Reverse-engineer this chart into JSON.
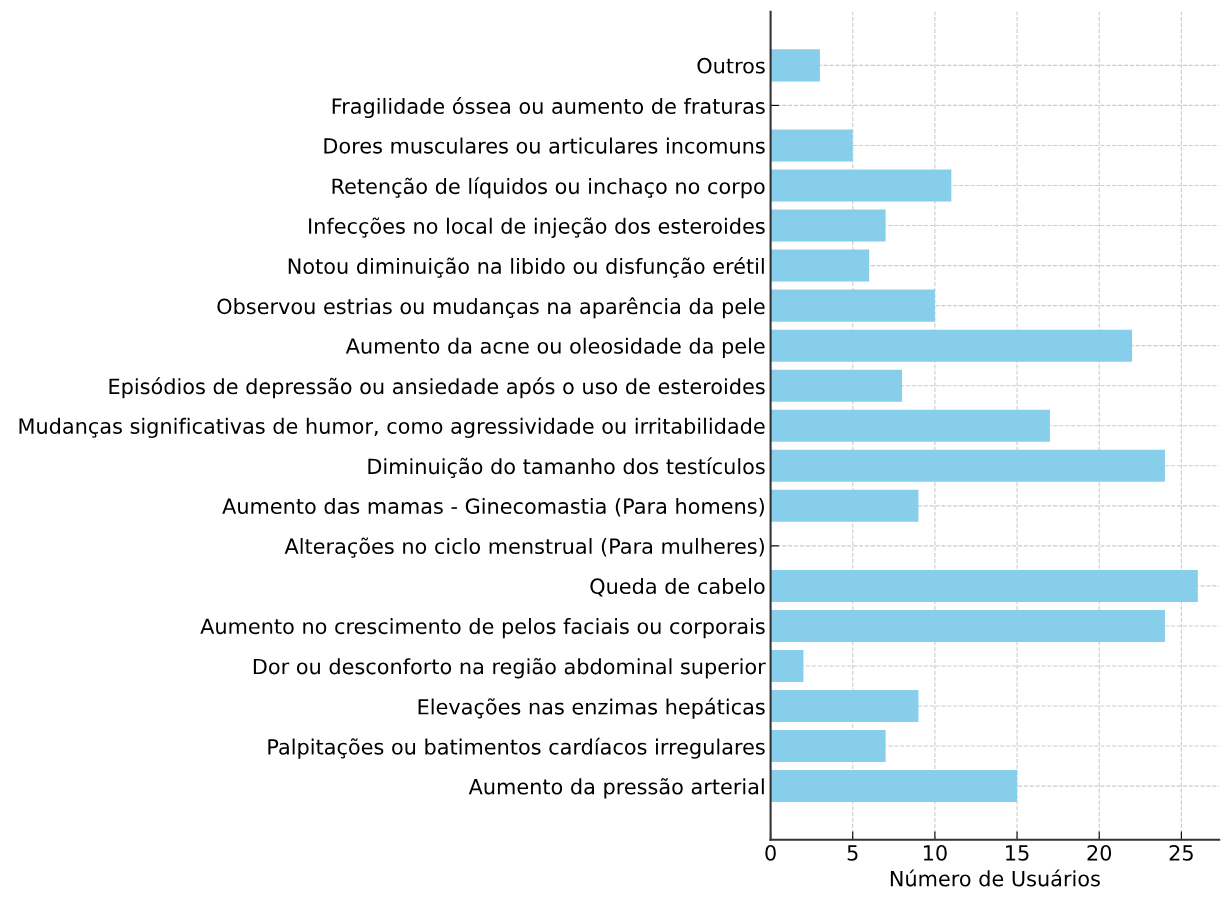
{
  "chart_data": {
    "type": "bar",
    "orientation": "horizontal",
    "xlabel": "Número de Usuários",
    "categories": [
      "Outros",
      "Fragilidade óssea ou aumento de fraturas",
      "Dores musculares ou articulares incomuns",
      "Retenção de líquidos ou inchaço no corpo",
      "Infecções no local de injeção dos esteroides",
      "Notou diminuição na libido ou disfunção erétil",
      "Observou estrias ou mudanças na aparência da pele",
      "Aumento da acne ou oleosidade da pele",
      "Episódios de depressão ou ansiedade após o uso de esteroides",
      "Mudanças significativas de humor, como agressividade ou irritabilidade",
      "Diminuição do tamanho dos testículos",
      "Aumento das mamas - Ginecomastia (Para homens)",
      "Alterações no ciclo menstrual (Para mulheres)",
      "Queda de cabelo",
      "Aumento no crescimento de pelos faciais ou corporais",
      "Dor ou desconforto na região abdominal superior",
      "Elevações nas enzimas hepáticas",
      "Palpitações ou batimentos cardíacos irregulares",
      "Aumento da pressão arterial"
    ],
    "values": [
      3,
      0,
      5,
      11,
      7,
      6,
      10,
      22,
      8,
      17,
      24,
      9,
      0,
      26,
      24,
      2,
      9,
      7,
      15
    ],
    "color": "#87ceeb",
    "xlim": [
      0,
      27.3
    ],
    "xticks": [
      0,
      5,
      10,
      15,
      20,
      25
    ],
    "grid": true
  }
}
